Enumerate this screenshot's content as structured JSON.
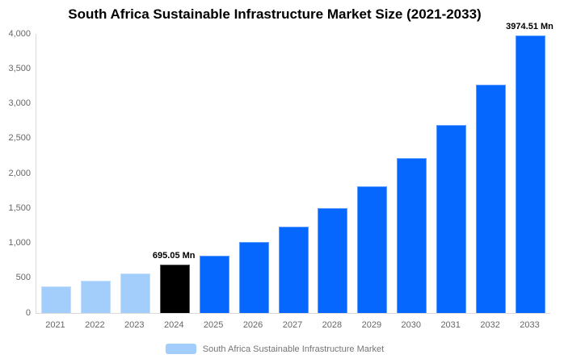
{
  "title": "South Africa Sustainable Infrastructure Market Size (2021-2033)",
  "colors": {
    "background": "#ffffff",
    "title_text": "#000000",
    "axis_line": "#d9d9d9",
    "tick_text": "#666666",
    "legend_text": "#757575",
    "series": {
      "historical": "#a3cdfa",
      "current": "#000000",
      "forecast": "#0567fd"
    }
  },
  "chart_data": {
    "type": "bar",
    "title": "South Africa Sustainable Infrastructure Market Size (2021-2033)",
    "xlabel": "",
    "ylabel": "",
    "unit": "Mn",
    "categories": [
      "2021",
      "2022",
      "2023",
      "2024",
      "2025",
      "2026",
      "2027",
      "2028",
      "2029",
      "2030",
      "2031",
      "2032",
      "2033"
    ],
    "values": [
      385,
      465,
      570,
      695.05,
      825,
      1015,
      1235,
      1500,
      1820,
      2215,
      2690,
      3270,
      3974.51
    ],
    "bar_styles": [
      "historical",
      "historical",
      "historical",
      "current",
      "forecast",
      "forecast",
      "forecast",
      "forecast",
      "forecast",
      "forecast",
      "forecast",
      "forecast",
      "forecast"
    ],
    "ylim": [
      0,
      4000
    ],
    "ytick_values": [
      0,
      500,
      1000,
      1500,
      2000,
      2500,
      3000,
      3500,
      4000
    ],
    "ytick_labels": [
      "0",
      "500",
      "1,000",
      "1,500",
      "2,000",
      "2,500",
      "3,000",
      "3,500",
      "4,000"
    ],
    "grid": false,
    "legend_position": "bottom",
    "data_labels": [
      {
        "index": 3,
        "text": "695.05 Mn"
      },
      {
        "index": 12,
        "text": "3974.51 Mn"
      }
    ]
  },
  "legend": {
    "items": [
      {
        "label": "South Africa Sustainable Infrastructure Market",
        "swatch_color": "#a3cdfa"
      }
    ]
  }
}
